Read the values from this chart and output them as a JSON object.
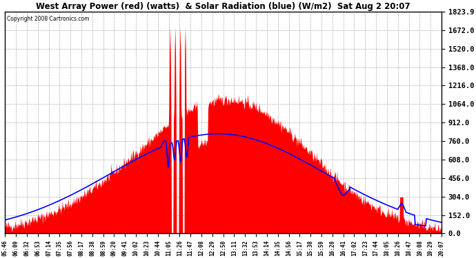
{
  "title": "West Array Power (red) (watts)  & Solar Radiation (blue) (W/m2)  Sat Aug 2 20:07",
  "copyright": "Copyright 2008 Cartronics.com",
  "y_ticks": [
    0.0,
    152.0,
    304.0,
    456.0,
    608.0,
    760.0,
    912.0,
    1064.0,
    1216.0,
    1368.0,
    1520.0,
    1672.0,
    1823.9
  ],
  "ylim": [
    0,
    1823.9
  ],
  "background_color": "#ffffff",
  "grid_color": "#999999",
  "time_labels": [
    "05:46",
    "06:09",
    "06:32",
    "06:53",
    "07:14",
    "07:35",
    "07:56",
    "08:17",
    "08:38",
    "08:59",
    "09:20",
    "09:41",
    "10:02",
    "10:23",
    "10:44",
    "11:05",
    "11:26",
    "11:47",
    "12:08",
    "12:29",
    "12:50",
    "13:11",
    "13:32",
    "13:53",
    "14:14",
    "14:35",
    "14:56",
    "15:17",
    "15:38",
    "15:59",
    "16:20",
    "16:41",
    "17:02",
    "17:23",
    "17:44",
    "18:05",
    "18:26",
    "18:47",
    "19:08",
    "19:29",
    "20:07"
  ]
}
